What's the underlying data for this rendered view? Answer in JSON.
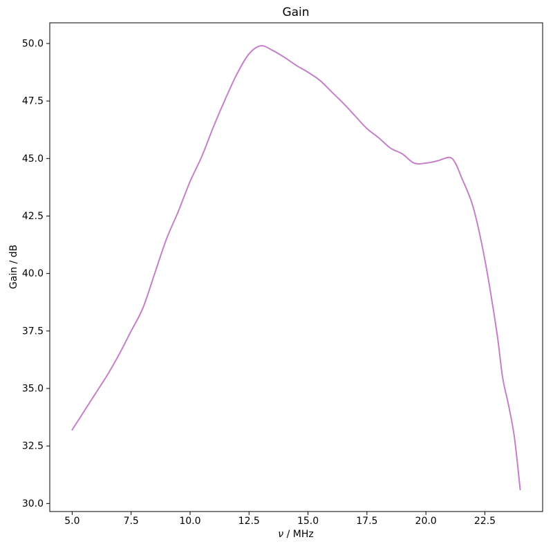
{
  "figure": {
    "background": "#ffffff",
    "title": "Gain"
  },
  "chart_data": {
    "type": "line",
    "title": "Gain",
    "xlabel": "ν / MHz",
    "xlabel_italic_symbol": "ν",
    "xlabel_rest": " / MHz",
    "ylabel": "Gain / dB",
    "xlim": [
      4.05,
      24.95
    ],
    "ylim": [
      29.65,
      50.9
    ],
    "xticks": [
      5.0,
      7.5,
      10.0,
      12.5,
      15.0,
      17.5,
      20.0,
      22.5
    ],
    "yticks": [
      30.0,
      32.5,
      35.0,
      37.5,
      40.0,
      42.5,
      45.0,
      47.5,
      50.0
    ],
    "grid": false,
    "legend": null,
    "line_color": "#c57fc9",
    "spine_color": "#000000",
    "text_color": "#000000",
    "series": [
      {
        "name": "Gain",
        "x": [
          5.0,
          5.5,
          6.0,
          6.5,
          7.0,
          7.5,
          8.0,
          8.5,
          9.0,
          9.5,
          10.0,
          10.5,
          11.0,
          11.5,
          12.0,
          12.5,
          13.0,
          13.5,
          14.0,
          14.5,
          15.0,
          15.5,
          16.0,
          16.5,
          17.0,
          17.5,
          18.0,
          18.5,
          19.0,
          19.5,
          20.0,
          20.5,
          21.0,
          21.25,
          21.5,
          22.0,
          22.5,
          23.0,
          23.25,
          23.5,
          23.75,
          24.0
        ],
        "y": [
          33.2,
          34.0,
          34.8,
          35.6,
          36.5,
          37.5,
          38.5,
          40.0,
          41.5,
          42.7,
          44.0,
          45.1,
          46.4,
          47.6,
          48.7,
          49.55,
          49.9,
          49.7,
          49.4,
          49.05,
          48.75,
          48.4,
          47.9,
          47.4,
          46.85,
          46.3,
          45.9,
          45.45,
          45.2,
          44.8,
          44.8,
          44.9,
          45.05,
          44.8,
          44.2,
          42.9,
          40.6,
          37.5,
          35.5,
          34.3,
          32.9,
          30.6
        ]
      }
    ],
    "annotations": {
      "peak": {
        "x": 13.0,
        "y": 49.9
      },
      "local_min": {
        "x": 19.7,
        "y": 44.75
      },
      "local_max": {
        "x": 21.0,
        "y": 45.05
      },
      "start": {
        "x": 5.0,
        "y": 33.2
      },
      "end": {
        "x": 24.0,
        "y": 30.6
      }
    }
  }
}
